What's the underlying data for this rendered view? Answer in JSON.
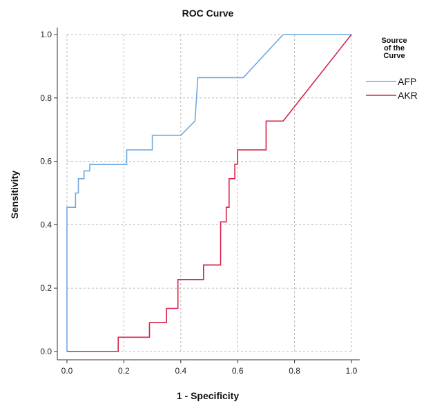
{
  "chart_data": {
    "type": "line",
    "title": "ROC Curve",
    "xlabel": "1 - Specificity",
    "ylabel": "Sensitivity",
    "xlim": [
      0,
      1
    ],
    "ylim": [
      0,
      1
    ],
    "xticks": [
      "0.0",
      "0.2",
      "0.4",
      "0.6",
      "0.8",
      "1.0"
    ],
    "yticks": [
      "0.0",
      "0.2",
      "0.4",
      "0.6",
      "0.8",
      "1.0"
    ],
    "grid": true,
    "legend": {
      "title": "Source of the Curve",
      "placement": "right"
    },
    "series": [
      {
        "name": "AFP",
        "color": "#6fa8e0",
        "x": [
          0,
          0,
          0.03,
          0.03,
          0.04,
          0.04,
          0.06,
          0.06,
          0.08,
          0.08,
          0.21,
          0.21,
          0.3,
          0.3,
          0.4,
          0.45,
          0.45,
          0.46,
          0.46,
          0.62,
          0.76,
          1.0
        ],
        "y": [
          0,
          0.455,
          0.455,
          0.5,
          0.5,
          0.545,
          0.545,
          0.57,
          0.57,
          0.59,
          0.59,
          0.636,
          0.636,
          0.682,
          0.682,
          0.727,
          0.727,
          0.864,
          0.864,
          0.864,
          1.0,
          1.0
        ]
      },
      {
        "name": "AKR",
        "color": "#d9224a",
        "x": [
          0,
          0.18,
          0.18,
          0.29,
          0.29,
          0.35,
          0.35,
          0.39,
          0.39,
          0.48,
          0.48,
          0.54,
          0.54,
          0.56,
          0.56,
          0.57,
          0.57,
          0.59,
          0.59,
          0.6,
          0.6,
          0.62,
          0.7,
          0.7,
          0.76,
          1.0
        ],
        "y": [
          0,
          0,
          0.045,
          0.045,
          0.091,
          0.091,
          0.136,
          0.136,
          0.227,
          0.227,
          0.273,
          0.273,
          0.409,
          0.409,
          0.455,
          0.455,
          0.545,
          0.545,
          0.591,
          0.591,
          0.636,
          0.636,
          0.636,
          0.727,
          0.727,
          1.0
        ]
      }
    ]
  },
  "legend_title_lines": [
    "Source",
    "of the",
    "Curve"
  ]
}
